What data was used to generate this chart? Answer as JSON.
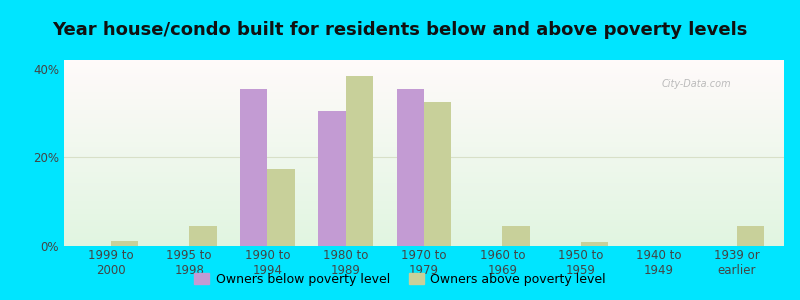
{
  "title": "Year house/condo built for residents below and above poverty levels",
  "categories": [
    "1999 to\n2000",
    "1995 to\n1998",
    "1990 to\n1994",
    "1980 to\n1989",
    "1970 to\n1979",
    "1960 to\n1969",
    "1950 to\n1959",
    "1940 to\n1949",
    "1939 or\nearlier"
  ],
  "below_poverty": [
    0,
    0,
    35.5,
    30.5,
    35.5,
    0,
    0,
    0,
    0
  ],
  "above_poverty": [
    1.2,
    4.5,
    17.5,
    38.5,
    32.5,
    4.5,
    0.8,
    0,
    4.5
  ],
  "below_color": "#c39bd3",
  "above_color": "#c8d09a",
  "bar_width": 0.35,
  "ylim": [
    0,
    42
  ],
  "yticks": [
    0,
    20,
    40
  ],
  "ytick_labels": [
    "0%",
    "20%",
    "40%"
  ],
  "background_outer": "#00e5ff",
  "grid_color": "#d8e0c8",
  "legend_below": "Owners below poverty level",
  "legend_above": "Owners above poverty level",
  "title_fontsize": 13,
  "tick_fontsize": 8.5,
  "legend_fontsize": 9,
  "watermark": "City-Data.com"
}
